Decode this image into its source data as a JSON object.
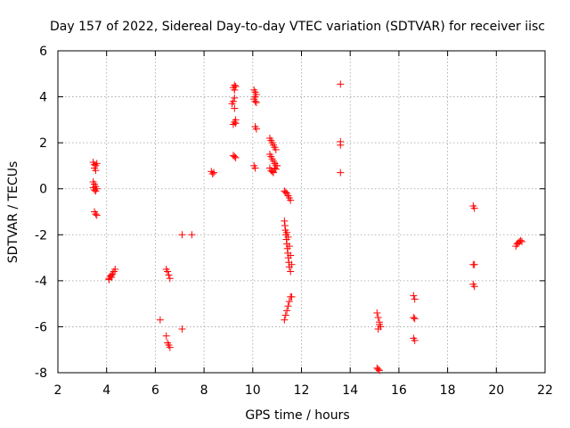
{
  "chart_data": {
    "type": "scatter",
    "title": "Day 157 of 2022, Sidereal Day-to-day VTEC variation (SDTVAR) for receiver iisc",
    "xlabel": "GPS time / hours",
    "ylabel": "SDTVAR / TECUs",
    "xlim": [
      2,
      22
    ],
    "ylim": [
      -8,
      6
    ],
    "xticks": [
      "2",
      "4",
      "6",
      "8",
      "10",
      "12",
      "14",
      "16",
      "18",
      "20",
      "22"
    ],
    "yticks": [
      "-8",
      "-6",
      "-4",
      "-2",
      "0",
      "2",
      "4",
      "6"
    ],
    "grid": true,
    "marker": "+",
    "color": "#ff0000",
    "series": [
      {
        "name": "SDTVAR",
        "points": [
          [
            3.45,
            1.15
          ],
          [
            3.5,
            1.05
          ],
          [
            3.55,
            1.0
          ],
          [
            3.6,
            1.1
          ],
          [
            3.5,
            0.9
          ],
          [
            3.55,
            0.8
          ],
          [
            3.45,
            0.3
          ],
          [
            3.5,
            0.2
          ],
          [
            3.55,
            0.1
          ],
          [
            3.6,
            0.0
          ],
          [
            3.5,
            -0.05
          ],
          [
            3.45,
            0.05
          ],
          [
            3.55,
            -0.1
          ],
          [
            3.5,
            -1.0
          ],
          [
            3.55,
            -1.1
          ],
          [
            3.6,
            -1.15
          ],
          [
            4.1,
            -3.9
          ],
          [
            4.15,
            -3.8
          ],
          [
            4.2,
            -3.75
          ],
          [
            4.25,
            -3.7
          ],
          [
            4.3,
            -3.6
          ],
          [
            4.35,
            -3.5
          ],
          [
            4.2,
            -3.85
          ],
          [
            4.1,
            -3.95
          ],
          [
            6.2,
            -5.7
          ],
          [
            6.45,
            -3.5
          ],
          [
            6.5,
            -3.6
          ],
          [
            6.55,
            -3.75
          ],
          [
            6.6,
            -3.9
          ],
          [
            6.45,
            -6.4
          ],
          [
            6.5,
            -6.7
          ],
          [
            6.55,
            -6.8
          ],
          [
            6.6,
            -6.9
          ],
          [
            7.1,
            -2.0
          ],
          [
            7.5,
            -2.0
          ],
          [
            7.1,
            -6.1
          ],
          [
            8.3,
            0.75
          ],
          [
            8.35,
            0.65
          ],
          [
            8.4,
            0.7
          ],
          [
            9.2,
            4.4
          ],
          [
            9.25,
            4.5
          ],
          [
            9.3,
            4.45
          ],
          [
            9.25,
            4.3
          ],
          [
            9.25,
            3.95
          ],
          [
            9.2,
            3.8
          ],
          [
            9.15,
            3.7
          ],
          [
            9.25,
            3.5
          ],
          [
            9.3,
            3.0
          ],
          [
            9.25,
            2.9
          ],
          [
            9.2,
            2.8
          ],
          [
            9.3,
            2.85
          ],
          [
            9.2,
            1.45
          ],
          [
            9.25,
            1.4
          ],
          [
            9.3,
            1.35
          ],
          [
            10.05,
            4.3
          ],
          [
            10.1,
            4.2
          ],
          [
            10.15,
            4.1
          ],
          [
            10.1,
            4.0
          ],
          [
            10.05,
            3.9
          ],
          [
            10.15,
            3.75
          ],
          [
            10.1,
            3.8
          ],
          [
            10.1,
            2.7
          ],
          [
            10.15,
            2.6
          ],
          [
            10.05,
            1.0
          ],
          [
            10.1,
            0.9
          ],
          [
            10.7,
            2.2
          ],
          [
            10.75,
            2.1
          ],
          [
            10.8,
            2.0
          ],
          [
            10.85,
            1.9
          ],
          [
            10.9,
            1.8
          ],
          [
            10.95,
            1.7
          ],
          [
            10.7,
            1.5
          ],
          [
            10.75,
            1.4
          ],
          [
            10.8,
            1.3
          ],
          [
            10.85,
            1.2
          ],
          [
            10.9,
            1.1
          ],
          [
            10.95,
            1.0
          ],
          [
            10.7,
            0.9
          ],
          [
            10.75,
            0.8
          ],
          [
            10.8,
            0.75
          ],
          [
            10.85,
            0.7
          ],
          [
            10.9,
            0.9
          ],
          [
            10.95,
            0.85
          ],
          [
            11.0,
            1.0
          ],
          [
            11.3,
            -0.1
          ],
          [
            11.35,
            -0.15
          ],
          [
            11.4,
            -0.2
          ],
          [
            11.45,
            -0.3
          ],
          [
            11.5,
            -0.4
          ],
          [
            11.55,
            -0.5
          ],
          [
            11.3,
            -1.4
          ],
          [
            11.32,
            -1.6
          ],
          [
            11.34,
            -1.8
          ],
          [
            11.36,
            -2.0
          ],
          [
            11.38,
            -2.2
          ],
          [
            11.4,
            -2.4
          ],
          [
            11.42,
            -2.6
          ],
          [
            11.44,
            -2.8
          ],
          [
            11.46,
            -3.0
          ],
          [
            11.48,
            -3.2
          ],
          [
            11.5,
            -3.4
          ],
          [
            11.55,
            -3.6
          ],
          [
            11.4,
            -1.9
          ],
          [
            11.45,
            -2.1
          ],
          [
            11.5,
            -2.5
          ],
          [
            11.55,
            -2.9
          ],
          [
            11.6,
            -3.3
          ],
          [
            11.3,
            -5.7
          ],
          [
            11.35,
            -5.5
          ],
          [
            11.4,
            -5.3
          ],
          [
            11.45,
            -5.1
          ],
          [
            11.5,
            -4.9
          ],
          [
            11.55,
            -4.7
          ],
          [
            11.6,
            -4.7
          ],
          [
            13.6,
            4.55
          ],
          [
            13.6,
            2.05
          ],
          [
            13.6,
            1.9
          ],
          [
            13.6,
            0.7
          ],
          [
            15.1,
            -5.4
          ],
          [
            15.15,
            -5.6
          ],
          [
            15.2,
            -5.8
          ],
          [
            15.25,
            -6.0
          ],
          [
            15.2,
            -5.9
          ],
          [
            15.15,
            -6.1
          ],
          [
            15.1,
            -7.8
          ],
          [
            15.15,
            -7.85
          ],
          [
            15.2,
            -7.9
          ],
          [
            16.6,
            -4.65
          ],
          [
            16.65,
            -4.8
          ],
          [
            16.6,
            -5.6
          ],
          [
            16.65,
            -5.65
          ],
          [
            16.6,
            -6.5
          ],
          [
            16.65,
            -6.6
          ],
          [
            19.05,
            -0.75
          ],
          [
            19.1,
            -0.85
          ],
          [
            19.05,
            -3.3
          ],
          [
            19.1,
            -3.3
          ],
          [
            19.05,
            -4.15
          ],
          [
            19.1,
            -4.25
          ],
          [
            20.8,
            -2.5
          ],
          [
            20.85,
            -2.4
          ],
          [
            20.9,
            -2.35
          ],
          [
            20.95,
            -2.3
          ],
          [
            21.0,
            -2.25
          ],
          [
            21.05,
            -2.3
          ]
        ]
      }
    ]
  }
}
